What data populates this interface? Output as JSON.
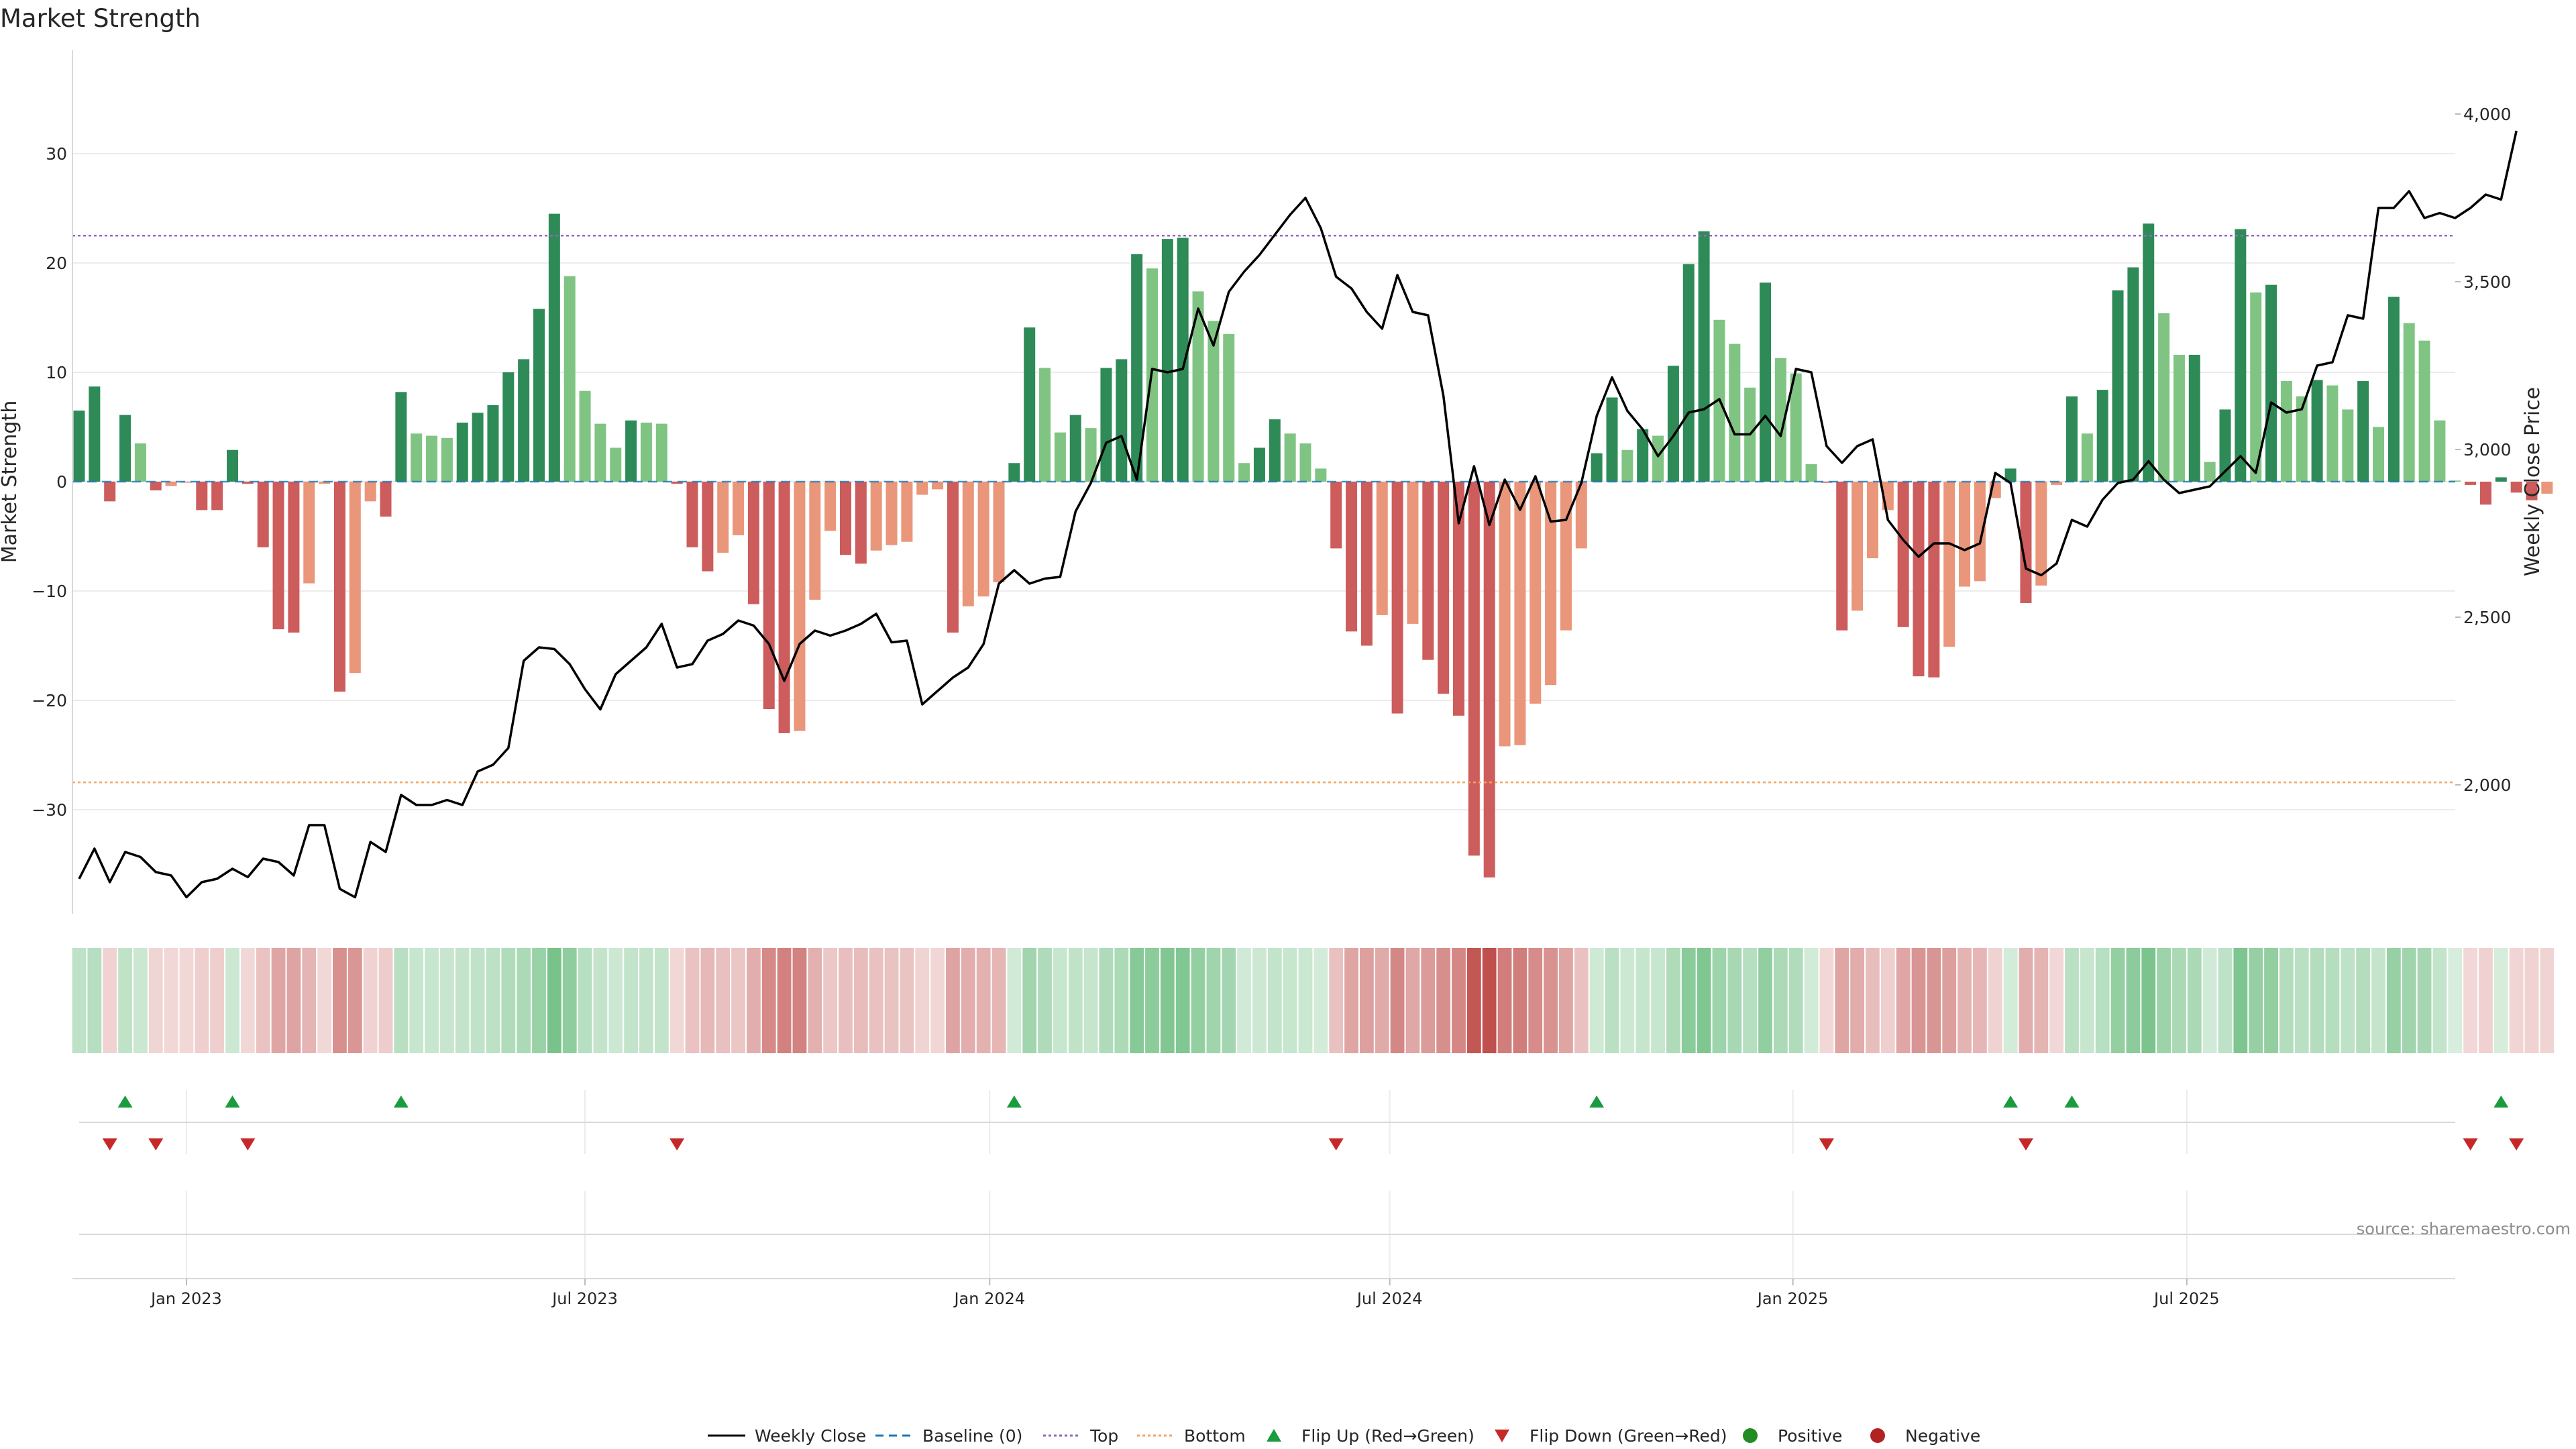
{
  "chart_data": {
    "type": "bar",
    "title": "Market Strength",
    "source": "source: sharemaestro.com",
    "ylabel_left": "Market Strength",
    "ylabel_right": "Weekly Close Price",
    "ylim": [
      -39,
      39
    ],
    "ylim_right": [
      1620,
      4200
    ],
    "yticks_left": [
      30,
      20,
      10,
      0,
      -10,
      -20,
      -30
    ],
    "yticks_left_labels": [
      "30",
      "20",
      "10",
      "0",
      "−10",
      "−20",
      "−30"
    ],
    "yticks_right": [
      4000,
      3500,
      3000,
      2500,
      2000
    ],
    "yticks_right_labels": [
      "4,000",
      "3,500",
      "3,000",
      "2,500",
      "2,000"
    ],
    "xticks": [
      {
        "label": "Jan 2023",
        "week": 7
      },
      {
        "label": "Jul 2023",
        "week": 33
      },
      {
        "label": "Jan 2024",
        "week": 59.4
      },
      {
        "label": "Jul 2024",
        "week": 85.5
      },
      {
        "label": "Jan 2025",
        "week": 111.8
      },
      {
        "label": "Jul 2025",
        "week": 137.5
      }
    ],
    "top_level": 22.5,
    "bottom_level": -27.5,
    "baseline": 0,
    "colors": {
      "pos_strong": "#2e8b57",
      "pos_weak": "#80c483",
      "neg_strong": "#cd5c5c",
      "neg_weak": "#e9967a",
      "price": "#000000",
      "top": "#9467bd",
      "bottom": "#f4a460",
      "baseline": "#1f77b4",
      "flip_up": "#1a9c3e",
      "flip_down": "#c62828",
      "positive_dot": "#228b22",
      "negative_dot": "#b22222"
    },
    "strength": [
      6.5,
      8.7,
      -1.8,
      6.1,
      3.5,
      -0.8,
      -0.4,
      -0.1,
      -2.6,
      -2.6,
      2.9,
      -0.2,
      -6,
      -13.5,
      -13.8,
      -9.3,
      -0.2,
      -19.2,
      -17.5,
      -1.8,
      -3.2,
      8.2,
      4.4,
      4.2,
      4,
      5.4,
      6.3,
      7,
      10,
      11.2,
      15.8,
      24.5,
      18.8,
      8.3,
      5.3,
      3.1,
      5.6,
      5.4,
      5.3,
      -0.2,
      -6,
      -8.2,
      -6.5,
      -4.9,
      -11.2,
      -20.8,
      -23,
      -22.8,
      -10.8,
      -4.5,
      -6.7,
      -7.5,
      -6.3,
      -5.8,
      -5.5,
      -1.2,
      -0.7,
      -13.8,
      -11.4,
      -10.5,
      -9.2,
      1.7,
      14.1,
      10.4,
      4.5,
      6.1,
      4.9,
      10.4,
      11.2,
      20.8,
      19.5,
      22.2,
      22.3,
      17.4,
      14.7,
      13.5,
      1.7,
      3.1,
      5.7,
      4.4,
      3.5,
      1.2,
      -6.1,
      -13.7,
      -15,
      -12.2,
      -21.2,
      -13,
      -16.3,
      -19.4,
      -21.4,
      -34.2,
      -36.2,
      -24.2,
      -24.1,
      -20.3,
      -18.6,
      -13.6,
      -6.1,
      2.6,
      7.7,
      2.9,
      4.8,
      4.2,
      10.6,
      19.9,
      22.9,
      14.8,
      12.6,
      8.6,
      18.2,
      11.3,
      9.9,
      1.6,
      -0.1,
      -13.6,
      -11.8,
      -7,
      -2.6,
      -13.3,
      -17.8,
      -17.9,
      -15.1,
      -9.6,
      -9.1,
      -1.5,
      1.2,
      -11.1,
      -9.5,
      -0.3,
      7.8,
      4.4,
      8.4,
      17.5,
      19.6,
      23.6,
      15.4,
      11.6,
      11.6,
      1.8,
      6.6,
      23.1,
      17.3,
      18,
      9.2,
      7.8,
      9.3,
      8.8,
      6.6,
      9.2,
      5,
      16.9,
      14.5,
      12.9,
      5.6,
      0.1,
      -0.3,
      -2.1,
      0.4,
      -1,
      -1.7,
      -1.1
    ],
    "weekly_close": [
      1720,
      1810,
      1710,
      1800,
      1785,
      1740,
      1730,
      1665,
      1710,
      1720,
      1750,
      1725,
      1780,
      1770,
      1730,
      1880,
      1880,
      1690,
      1665,
      1830,
      1800,
      1970,
      1940,
      1940,
      1955,
      1940,
      2040,
      2060,
      2110,
      2370,
      2410,
      2405,
      2360,
      2285,
      2225,
      2330,
      2370,
      2410,
      2480,
      2350,
      2360,
      2430,
      2450,
      2490,
      2475,
      2420,
      2310,
      2420,
      2460,
      2445,
      2460,
      2480,
      2510,
      2425,
      2430,
      2240,
      2280,
      2320,
      2350,
      2420,
      2600,
      2640,
      2600,
      2615,
      2620,
      2815,
      2900,
      3020,
      3040,
      2910,
      3240,
      3230,
      3240,
      3420,
      3310,
      3470,
      3530,
      3580,
      3640,
      3700,
      3750,
      3660,
      3515,
      3480,
      3410,
      3360,
      3520,
      3410,
      3400,
      3160,
      2780,
      2950,
      2775,
      2910,
      2820,
      2920,
      2785,
      2790,
      2900,
      3100,
      3215,
      3115,
      3060,
      2980,
      3040,
      3110,
      3120,
      3150,
      3045,
      3045,
      3100,
      3040,
      3240,
      3230,
      3010,
      2960,
      3010,
      3030,
      2790,
      2730,
      2680,
      2720,
      2720,
      2700,
      2720,
      2930,
      2900,
      2645,
      2625,
      2660,
      2790,
      2770,
      2850,
      2900,
      2910,
      2965,
      2910,
      2870,
      2880,
      2890,
      2935,
      2980,
      2930,
      3140,
      3110,
      3120,
      3250,
      3260,
      3400,
      3390,
      3720,
      3720,
      3770,
      3690,
      3705,
      3690,
      3720,
      3760,
      3745,
      3950
    ]
  }
}
